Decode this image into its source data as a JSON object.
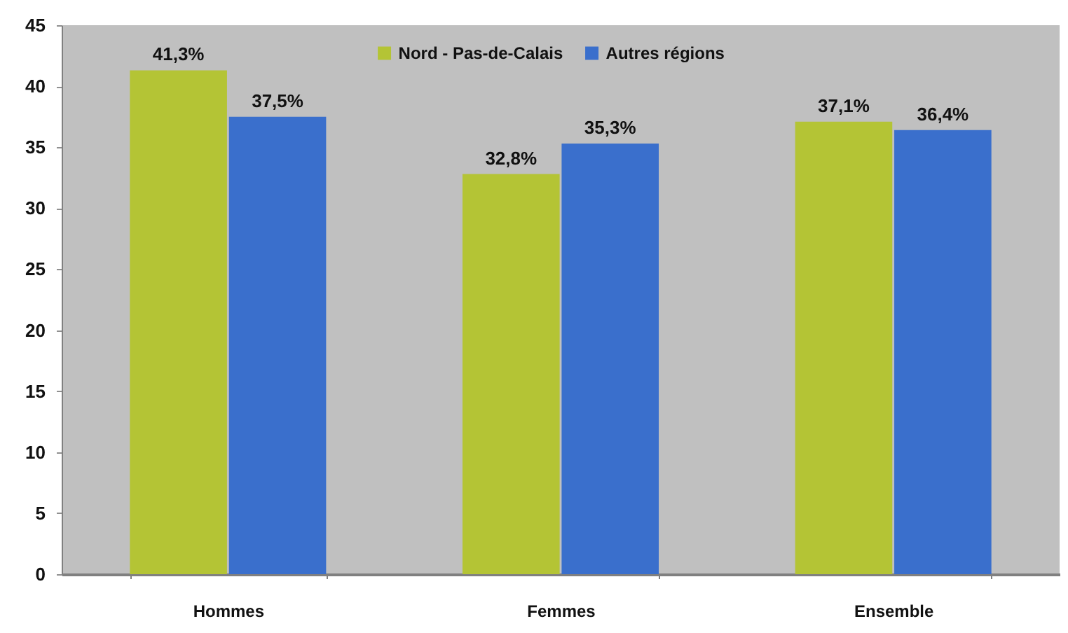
{
  "chart_data": {
    "type": "bar",
    "categories": [
      "Hommes",
      "Femmes",
      "Ensemble"
    ],
    "series": [
      {
        "name": "Nord - Pas-de-Calais",
        "color": "#b4c435",
        "values": [
          41.3,
          32.8,
          37.1
        ],
        "value_labels": [
          "41,3%",
          "32,8%",
          "37,1%"
        ]
      },
      {
        "name": "Autres régions",
        "color": "#3a6fcc",
        "values": [
          37.5,
          35.3,
          36.4
        ],
        "value_labels": [
          "37,5%",
          "35,3%",
          "36,4%"
        ]
      }
    ],
    "ylim": [
      0,
      45
    ],
    "yticks": [
      0,
      5,
      10,
      15,
      20,
      25,
      30,
      35,
      40,
      45
    ],
    "legend": "top"
  }
}
